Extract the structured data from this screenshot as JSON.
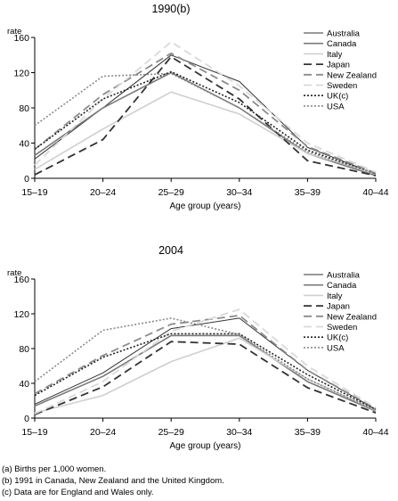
{
  "chart_data": [
    {
      "type": "line",
      "title": "1990(b)",
      "ylabel": "rate",
      "xlabel": "Age group (years)",
      "ylim": [
        0,
        160
      ],
      "yticks": [
        0,
        40,
        80,
        120,
        160
      ],
      "categories": [
        "15–19",
        "20–24",
        "25–29",
        "30–34",
        "35–39",
        "40–44"
      ],
      "series": [
        {
          "name": "Australia",
          "values": [
            22,
            80,
            140,
            110,
            35,
            5
          ]
        },
        {
          "name": "Canada",
          "values": [
            26,
            80,
            120,
            80,
            28,
            3
          ]
        },
        {
          "name": "Italy",
          "values": [
            10,
            56,
            98,
            73,
            28,
            6
          ]
        },
        {
          "name": "Japan",
          "values": [
            4,
            44,
            138,
            90,
            20,
            3
          ]
        },
        {
          "name": "New Zealand",
          "values": [
            33,
            95,
            142,
            100,
            36,
            6
          ]
        },
        {
          "name": "Sweden",
          "values": [
            15,
            90,
            155,
            105,
            40,
            7
          ]
        },
        {
          "name": "UK(c)",
          "values": [
            33,
            90,
            121,
            86,
            32,
            5
          ]
        },
        {
          "name": "USA",
          "values": [
            60,
            116,
            119,
            80,
            30,
            5
          ]
        }
      ]
    },
    {
      "type": "line",
      "title": "2004",
      "ylabel": "rate",
      "xlabel": "Age group (years)",
      "ylim": [
        0,
        160
      ],
      "yticks": [
        0,
        40,
        80,
        120,
        160
      ],
      "categories": [
        "15–19",
        "20–24",
        "25–29",
        "30–34",
        "35–39",
        "40–44"
      ],
      "series": [
        {
          "name": "Australia",
          "values": [
            16,
            52,
            103,
            115,
            55,
            10
          ]
        },
        {
          "name": "Canada",
          "values": [
            14,
            48,
            95,
            95,
            42,
            8
          ]
        },
        {
          "name": "Italy",
          "values": [
            6,
            26,
            65,
            92,
            45,
            9
          ]
        },
        {
          "name": "Japan",
          "values": [
            4,
            36,
            88,
            85,
            35,
            6
          ]
        },
        {
          "name": "New Zealand",
          "values": [
            28,
            72,
            108,
            118,
            55,
            11
          ]
        },
        {
          "name": "Sweden",
          "values": [
            5,
            42,
            100,
            125,
            60,
            12
          ]
        },
        {
          "name": "UK(c)",
          "values": [
            26,
            70,
            97,
            97,
            50,
            10
          ]
        },
        {
          "name": "USA",
          "values": [
            42,
            101,
            115,
            96,
            45,
            9
          ]
        }
      ]
    }
  ],
  "series_styles": [
    {
      "color": "#333333",
      "dash": "",
      "width": 1.0
    },
    {
      "color": "#7a7a7a",
      "dash": "",
      "width": 1.6
    },
    {
      "color": "#cfcfcf",
      "dash": "",
      "width": 1.6
    },
    {
      "color": "#333333",
      "dash": "9,5",
      "width": 1.8
    },
    {
      "color": "#8c8c8c",
      "dash": "9,5",
      "width": 1.8
    },
    {
      "color": "#d9d9d9",
      "dash": "9,5",
      "width": 1.8
    },
    {
      "color": "#222222",
      "dash": "2,2",
      "width": 1.6
    },
    {
      "color": "#8a8a8a",
      "dash": "2,2",
      "width": 1.6
    }
  ],
  "footnotes": [
    "(a) Births per 1,000 women.",
    "(b) 1991 in Canada, New Zealand and the United Kingdom.",
    "(c) Data are for England and Wales only."
  ]
}
